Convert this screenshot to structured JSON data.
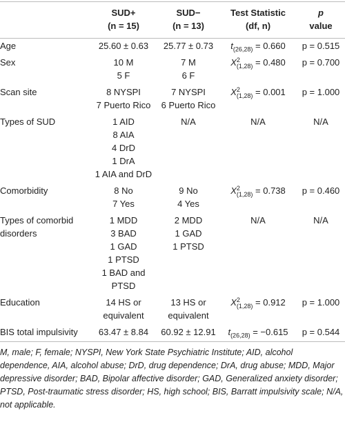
{
  "table": {
    "columns": [
      {
        "lines": [
          "SUD+",
          "(n = 15)"
        ]
      },
      {
        "lines": [
          "SUD−",
          "(n = 13)"
        ]
      },
      {
        "lines": [
          "Test Statistic",
          "(df, n)"
        ]
      },
      {
        "lines": [
          "p",
          "value"
        ]
      }
    ],
    "rows": [
      {
        "label": "Age",
        "sud_pos": [
          "25.60 ± 0.63"
        ],
        "sud_neg": [
          "25.77 ± 0.73"
        ],
        "stat": {
          "symbol": "t",
          "sub": "(26,28)",
          "rest": " = 0.660"
        },
        "p": "p = 0.515"
      },
      {
        "label": "Sex",
        "sud_pos": [
          "10 M",
          "5 F"
        ],
        "sud_neg": [
          "7 M",
          "6 F"
        ],
        "stat": {
          "symbol": "X",
          "sup": "2",
          "sub": "(1,28)",
          "rest": " = 0.480"
        },
        "p": "p = 0.700"
      },
      {
        "label": "Scan site",
        "sud_pos": [
          "8 NYSPI",
          "7 Puerto Rico"
        ],
        "sud_neg": [
          "7 NYSPI",
          "6 Puerto Rico"
        ],
        "stat": {
          "symbol": "X",
          "sup": "2",
          "sub": "(1,28)",
          "rest": " = 0.001"
        },
        "p": "p = 1.000"
      },
      {
        "label": "Types of SUD",
        "sud_pos": [
          "1 AID",
          "8 AIA",
          "4 DrD",
          "1 DrA",
          "1 AIA and DrD"
        ],
        "sud_neg": [
          "N/A"
        ],
        "stat": "N/A",
        "p": "N/A"
      },
      {
        "label": "Comorbidity",
        "sud_pos": [
          "8 No",
          "7 Yes"
        ],
        "sud_neg": [
          "9 No",
          "4 Yes"
        ],
        "stat": {
          "symbol": "X",
          "sup": "2",
          "sub": "(1,28)",
          "rest": " = 0.738"
        },
        "p": "p = 0.460"
      },
      {
        "label": "Types of comorbid disorders",
        "sud_pos": [
          "1 MDD",
          "3 BAD",
          "1 GAD",
          "1 PTSD",
          "1 BAD and PTSD"
        ],
        "sud_neg": [
          "2 MDD",
          "1 GAD",
          "1 PTSD"
        ],
        "stat": "N/A",
        "p": "N/A"
      },
      {
        "label": "Education",
        "sud_pos": [
          "14 HS or equivalent"
        ],
        "sud_neg": [
          "13 HS or equivalent"
        ],
        "stat": {
          "symbol": "X",
          "sup": "2",
          "sub": "(1,28)",
          "rest": " = 0.912"
        },
        "p": "p = 1.000"
      },
      {
        "label": "BIS total impulsivity",
        "sud_pos": [
          "63.47 ± 8.84"
        ],
        "sud_neg": [
          "60.92 ± 12.91"
        ],
        "stat": {
          "symbol": "t",
          "sub": "(26,28)",
          "rest": " = −0.615"
        },
        "p": "p = 0.544"
      }
    ]
  },
  "footnote": "M, male; F, female; NYSPI, New York State Psychiatric Institute; AID, alcohol dependence, AIA, alcohol abuse; DrD, drug dependence; DrA, drug abuse; MDD, Major depressive disorder; BAD, Bipolar affective disorder; GAD, Generalized anxiety disorder; PTSD, Post-traumatic stress disorder; HS, high school; BIS, Barratt impulsivity scale; N/A, not applicable."
}
